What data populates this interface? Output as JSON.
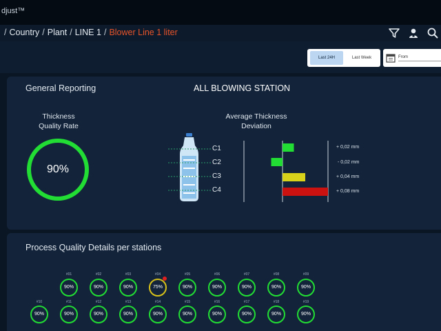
{
  "app": {
    "title": "djust™"
  },
  "breadcrumb": {
    "items": [
      {
        "label": "Country"
      },
      {
        "label": "Plant"
      },
      {
        "label": "LINE 1"
      },
      {
        "label": "Blower Line 1 liter"
      }
    ]
  },
  "filters": {
    "period_active": "Last 24H",
    "period_other": "Last Week",
    "from_label": "From"
  },
  "general": {
    "title": "General Reporting",
    "station": "ALL BLOWING STATION",
    "quality_label_line1": "Thickness",
    "quality_label_line2": "Quality Rate",
    "quality_value": "90%",
    "quality_ratio": 0.9,
    "deviation_label_line1": "Average Thickness",
    "deviation_label_line2": "Deviation"
  },
  "chart_data": {
    "type": "bar",
    "orientation": "horizontal",
    "categories": [
      "C1",
      "C2",
      "C3",
      "C4"
    ],
    "values": [
      0.02,
      -0.02,
      0.04,
      0.08
    ],
    "value_labels": [
      "+ 0,02 mm",
      "- 0,02 mm",
      "+ 0,04 mm",
      "+ 0,08 mm"
    ],
    "colors": [
      "#22dd33",
      "#22dd33",
      "#d8d21a",
      "#cc1111"
    ],
    "xlim": [
      -0.04,
      0.08
    ],
    "title": "",
    "xlabel": "",
    "ylabel": ""
  },
  "process": {
    "title": "Process Quality Details per stations",
    "row1": [
      {
        "num": "#01",
        "value": "90%",
        "status": "ok"
      },
      {
        "num": "#02",
        "value": "90%",
        "status": "ok"
      },
      {
        "num": "#03",
        "value": "90%",
        "status": "ok"
      },
      {
        "num": "#04",
        "value": "75%",
        "status": "warn"
      },
      {
        "num": "#05",
        "value": "90%",
        "status": "ok"
      },
      {
        "num": "#06",
        "value": "90%",
        "status": "ok"
      },
      {
        "num": "#07",
        "value": "90%",
        "status": "ok"
      },
      {
        "num": "#08",
        "value": "90%",
        "status": "ok"
      },
      {
        "num": "#09",
        "value": "90%",
        "status": "ok"
      }
    ],
    "row2": [
      {
        "num": "#10",
        "value": "90%",
        "status": "ok"
      },
      {
        "num": "#11",
        "value": "90%",
        "status": "ok"
      },
      {
        "num": "#12",
        "value": "90%",
        "status": "ok"
      },
      {
        "num": "#13",
        "value": "90%",
        "status": "ok"
      },
      {
        "num": "#14",
        "value": "90%",
        "status": "ok"
      },
      {
        "num": "#15",
        "value": "90%",
        "status": "ok"
      },
      {
        "num": "#16",
        "value": "90%",
        "status": "ok"
      },
      {
        "num": "#17",
        "value": "90%",
        "status": "ok"
      },
      {
        "num": "#18",
        "value": "90%",
        "status": "ok"
      },
      {
        "num": "#19",
        "value": "90%",
        "status": "ok"
      }
    ]
  },
  "colors": {
    "accent": "#e8542a",
    "ok": "#22dd33",
    "warn": "#d8c21a",
    "alert": "#e02020"
  },
  "icons": {
    "filter": "filter-icon",
    "users": "users-icon",
    "search": "search-icon",
    "calendar": "calendar-icon"
  }
}
